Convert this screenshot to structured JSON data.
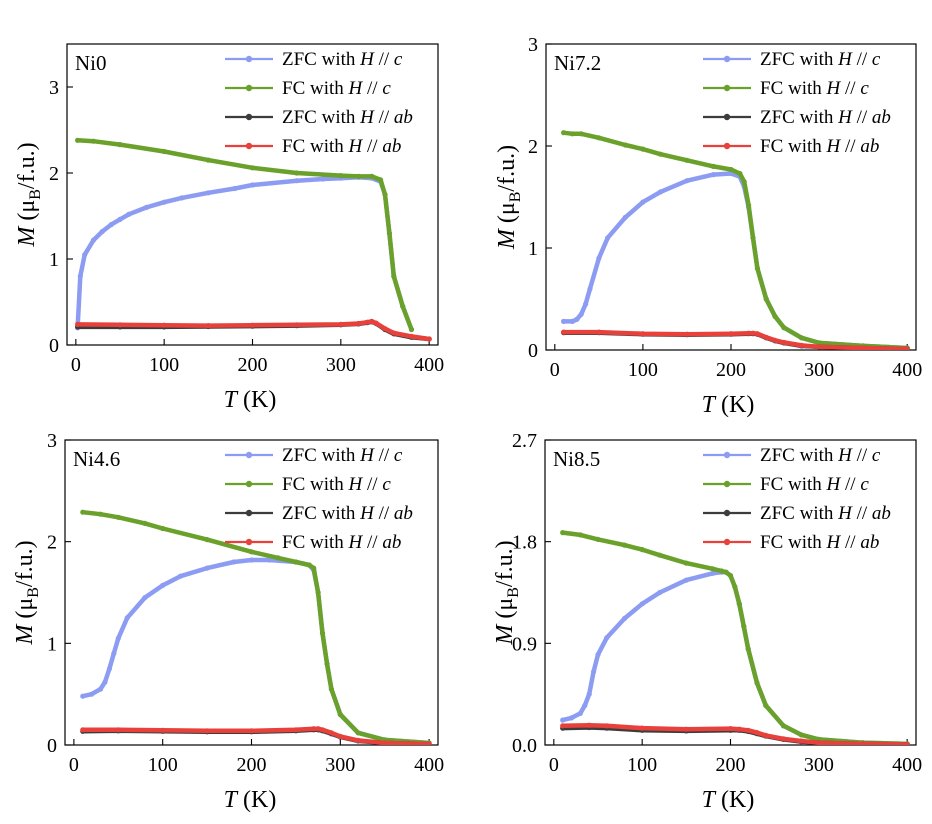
{
  "chart_data": [
    {
      "type": "line",
      "panel_label": "Ni0",
      "xlabel_var": "T",
      "xlabel_unit": "(K)",
      "ylabel_var": "M",
      "ylabel_unit": "(μB/f.u.)",
      "xlim": [
        -10,
        410
      ],
      "ylim": [
        0,
        3.5
      ],
      "xticks": [
        0,
        100,
        200,
        300,
        400
      ],
      "yticks": [
        0,
        1,
        2,
        3
      ],
      "ytick_labels": [
        "0",
        "1",
        "2",
        "3"
      ],
      "legend_position": "top-right",
      "series": [
        {
          "name": "ZFC with H // c",
          "color": "#8c9cf2",
          "x": [
            2,
            5,
            10,
            20,
            30,
            40,
            50,
            60,
            80,
            100,
            120,
            150,
            180,
            200,
            250,
            280,
            300,
            320,
            335,
            345,
            350,
            355,
            360,
            370,
            380
          ],
          "y": [
            0.2,
            0.8,
            1.05,
            1.22,
            1.32,
            1.4,
            1.46,
            1.52,
            1.6,
            1.66,
            1.71,
            1.77,
            1.82,
            1.86,
            1.91,
            1.93,
            1.94,
            1.95,
            1.94,
            1.9,
            1.75,
            1.3,
            0.8,
            0.45,
            0.18
          ]
        },
        {
          "name": "FC with H // c",
          "color": "#6aa12b",
          "x": [
            2,
            20,
            50,
            100,
            150,
            200,
            250,
            300,
            320,
            335,
            345,
            350,
            355,
            360,
            370,
            380
          ],
          "y": [
            2.38,
            2.37,
            2.33,
            2.25,
            2.15,
            2.06,
            2.0,
            1.97,
            1.96,
            1.96,
            1.92,
            1.75,
            1.3,
            0.8,
            0.45,
            0.18
          ]
        },
        {
          "name": "ZFC with H // ab",
          "color": "#3c3c3c",
          "x": [
            2,
            50,
            100,
            150,
            200,
            250,
            300,
            320,
            330,
            335,
            340,
            350,
            360,
            380,
            400
          ],
          "y": [
            0.21,
            0.21,
            0.21,
            0.215,
            0.22,
            0.225,
            0.235,
            0.245,
            0.26,
            0.27,
            0.25,
            0.18,
            0.13,
            0.09,
            0.07
          ]
        },
        {
          "name": "FC with H // ab",
          "color": "#e8413c",
          "x": [
            2,
            50,
            100,
            150,
            200,
            250,
            300,
            320,
            330,
            335,
            340,
            350,
            360,
            380,
            400
          ],
          "y": [
            0.24,
            0.235,
            0.23,
            0.225,
            0.23,
            0.235,
            0.24,
            0.25,
            0.265,
            0.275,
            0.255,
            0.19,
            0.14,
            0.1,
            0.07
          ]
        }
      ]
    },
    {
      "type": "line",
      "panel_label": "Ni7.2",
      "xlabel_var": "T",
      "xlabel_unit": "(K)",
      "ylabel_var": "M",
      "ylabel_unit": "(μB/f.u.)",
      "xlim": [
        -10,
        410
      ],
      "ylim": [
        0,
        3
      ],
      "xticks": [
        0,
        100,
        200,
        300,
        400
      ],
      "yticks": [
        0,
        1,
        2,
        3
      ],
      "ytick_labels": [
        "0",
        "1",
        "2",
        "3"
      ],
      "legend_position": "top-right",
      "series": [
        {
          "name": "ZFC with H // c",
          "color": "#8c9cf2",
          "x": [
            10,
            20,
            25,
            30,
            35,
            40,
            50,
            60,
            80,
            100,
            120,
            150,
            180,
            200,
            210,
            215,
            220,
            225,
            230,
            240,
            250,
            260,
            280,
            300,
            350,
            400
          ],
          "y": [
            0.28,
            0.28,
            0.3,
            0.35,
            0.45,
            0.6,
            0.9,
            1.1,
            1.3,
            1.45,
            1.55,
            1.66,
            1.72,
            1.73,
            1.7,
            1.6,
            1.4,
            1.1,
            0.8,
            0.5,
            0.33,
            0.22,
            0.12,
            0.07,
            0.04,
            0.02
          ]
        },
        {
          "name": "FC with H // c",
          "color": "#6aa12b",
          "x": [
            10,
            20,
            30,
            50,
            80,
            100,
            120,
            150,
            180,
            200,
            210,
            215,
            220,
            225,
            230,
            240,
            250,
            260,
            280,
            300,
            350,
            400
          ],
          "y": [
            2.13,
            2.12,
            2.12,
            2.08,
            2.01,
            1.97,
            1.92,
            1.86,
            1.8,
            1.77,
            1.73,
            1.65,
            1.42,
            1.1,
            0.8,
            0.5,
            0.33,
            0.22,
            0.12,
            0.07,
            0.04,
            0.02
          ]
        },
        {
          "name": "ZFC with H // ab",
          "color": "#3c3c3c",
          "x": [
            10,
            50,
            100,
            150,
            200,
            220,
            225,
            230,
            240,
            250,
            260,
            280,
            300,
            350,
            400
          ],
          "y": [
            0.17,
            0.17,
            0.155,
            0.15,
            0.155,
            0.16,
            0.16,
            0.155,
            0.12,
            0.09,
            0.07,
            0.04,
            0.03,
            0.02,
            0.01
          ]
        },
        {
          "name": "FC with H // ab",
          "color": "#e8413c",
          "x": [
            10,
            50,
            100,
            150,
            200,
            220,
            225,
            230,
            240,
            250,
            260,
            280,
            300,
            350,
            400
          ],
          "y": [
            0.175,
            0.175,
            0.16,
            0.155,
            0.16,
            0.165,
            0.165,
            0.16,
            0.125,
            0.095,
            0.075,
            0.045,
            0.03,
            0.02,
            0.01
          ]
        }
      ]
    },
    {
      "type": "line",
      "panel_label": "Ni4.6",
      "xlabel_var": "T",
      "xlabel_unit": "(K)",
      "ylabel_var": "M",
      "ylabel_unit": "(μB/f.u.)",
      "xlim": [
        -10,
        410
      ],
      "ylim": [
        0,
        3
      ],
      "xticks": [
        0,
        100,
        200,
        300,
        400
      ],
      "yticks": [
        0,
        1,
        2,
        3
      ],
      "ytick_labels": [
        "0",
        "1",
        "2",
        "3"
      ],
      "legend_position": "top-right",
      "series": [
        {
          "name": "ZFC with H // c",
          "color": "#8c9cf2",
          "x": [
            10,
            20,
            30,
            35,
            40,
            45,
            50,
            60,
            80,
            100,
            120,
            150,
            180,
            200,
            220,
            250,
            265,
            270,
            275,
            280,
            285,
            290,
            300,
            320,
            350,
            400
          ],
          "y": [
            0.48,
            0.5,
            0.55,
            0.62,
            0.75,
            0.9,
            1.05,
            1.25,
            1.45,
            1.57,
            1.66,
            1.74,
            1.8,
            1.82,
            1.82,
            1.8,
            1.77,
            1.72,
            1.5,
            1.1,
            0.8,
            0.55,
            0.3,
            0.12,
            0.05,
            0.02
          ]
        },
        {
          "name": "FC with H // c",
          "color": "#6aa12b",
          "x": [
            10,
            30,
            50,
            80,
            100,
            150,
            200,
            230,
            250,
            265,
            270,
            275,
            280,
            285,
            290,
            300,
            320,
            350,
            400
          ],
          "y": [
            2.29,
            2.27,
            2.24,
            2.18,
            2.13,
            2.02,
            1.9,
            1.84,
            1.8,
            1.77,
            1.74,
            1.5,
            1.1,
            0.8,
            0.55,
            0.3,
            0.12,
            0.05,
            0.02
          ]
        },
        {
          "name": "ZFC with H // ab",
          "color": "#3c3c3c",
          "x": [
            10,
            50,
            100,
            150,
            200,
            250,
            270,
            275,
            280,
            290,
            300,
            320,
            350,
            400
          ],
          "y": [
            0.135,
            0.14,
            0.135,
            0.13,
            0.13,
            0.14,
            0.15,
            0.15,
            0.14,
            0.11,
            0.08,
            0.04,
            0.02,
            0.01
          ]
        },
        {
          "name": "FC with H // ab",
          "color": "#e8413c",
          "x": [
            10,
            50,
            100,
            150,
            200,
            250,
            270,
            275,
            280,
            290,
            300,
            320,
            350,
            400
          ],
          "y": [
            0.15,
            0.15,
            0.145,
            0.14,
            0.14,
            0.15,
            0.16,
            0.16,
            0.15,
            0.12,
            0.085,
            0.045,
            0.02,
            0.01
          ]
        }
      ]
    },
    {
      "type": "line",
      "panel_label": "Ni8.5",
      "xlabel_var": "T",
      "xlabel_unit": "(K)",
      "ylabel_var": "M",
      "ylabel_unit": "(μB/f.u.)",
      "xlim": [
        -10,
        410
      ],
      "ylim": [
        0,
        2.7
      ],
      "xticks": [
        0,
        100,
        200,
        300,
        400
      ],
      "yticks": [
        0,
        0.9,
        1.8,
        2.7
      ],
      "ytick_labels": [
        "0.0",
        "0.9",
        "1.8",
        "2.7"
      ],
      "legend_position": "top-right",
      "series": [
        {
          "name": "ZFC with H // c",
          "color": "#8c9cf2",
          "x": [
            10,
            20,
            30,
            35,
            40,
            45,
            50,
            60,
            80,
            100,
            120,
            150,
            180,
            190,
            195,
            200,
            205,
            210,
            215,
            220,
            230,
            240,
            260,
            280,
            300,
            350,
            400
          ],
          "y": [
            0.22,
            0.24,
            0.28,
            0.35,
            0.45,
            0.65,
            0.8,
            0.95,
            1.12,
            1.25,
            1.35,
            1.46,
            1.52,
            1.53,
            1.53,
            1.5,
            1.4,
            1.25,
            1.05,
            0.85,
            0.55,
            0.35,
            0.17,
            0.09,
            0.05,
            0.02,
            0.01
          ]
        },
        {
          "name": "FC with H // c",
          "color": "#6aa12b",
          "x": [
            10,
            30,
            50,
            80,
            100,
            120,
            150,
            180,
            190,
            195,
            200,
            205,
            210,
            215,
            220,
            230,
            240,
            260,
            280,
            300,
            350,
            400
          ],
          "y": [
            1.88,
            1.86,
            1.82,
            1.77,
            1.73,
            1.68,
            1.61,
            1.56,
            1.54,
            1.53,
            1.5,
            1.4,
            1.25,
            1.05,
            0.85,
            0.55,
            0.35,
            0.17,
            0.09,
            0.05,
            0.02,
            0.01
          ]
        },
        {
          "name": "ZFC with H // ab",
          "color": "#3c3c3c",
          "x": [
            10,
            40,
            60,
            100,
            150,
            200,
            210,
            220,
            230,
            240,
            260,
            280,
            300,
            350,
            400
          ],
          "y": [
            0.15,
            0.155,
            0.15,
            0.13,
            0.125,
            0.13,
            0.13,
            0.12,
            0.1,
            0.08,
            0.05,
            0.03,
            0.02,
            0.01,
            0.005
          ]
        },
        {
          "name": "FC with H // ab",
          "color": "#e8413c",
          "x": [
            10,
            40,
            60,
            100,
            150,
            200,
            210,
            220,
            230,
            240,
            260,
            280,
            300,
            350,
            400
          ],
          "y": [
            0.17,
            0.175,
            0.17,
            0.15,
            0.14,
            0.145,
            0.14,
            0.13,
            0.11,
            0.085,
            0.055,
            0.035,
            0.02,
            0.01,
            0.005
          ]
        }
      ]
    }
  ]
}
